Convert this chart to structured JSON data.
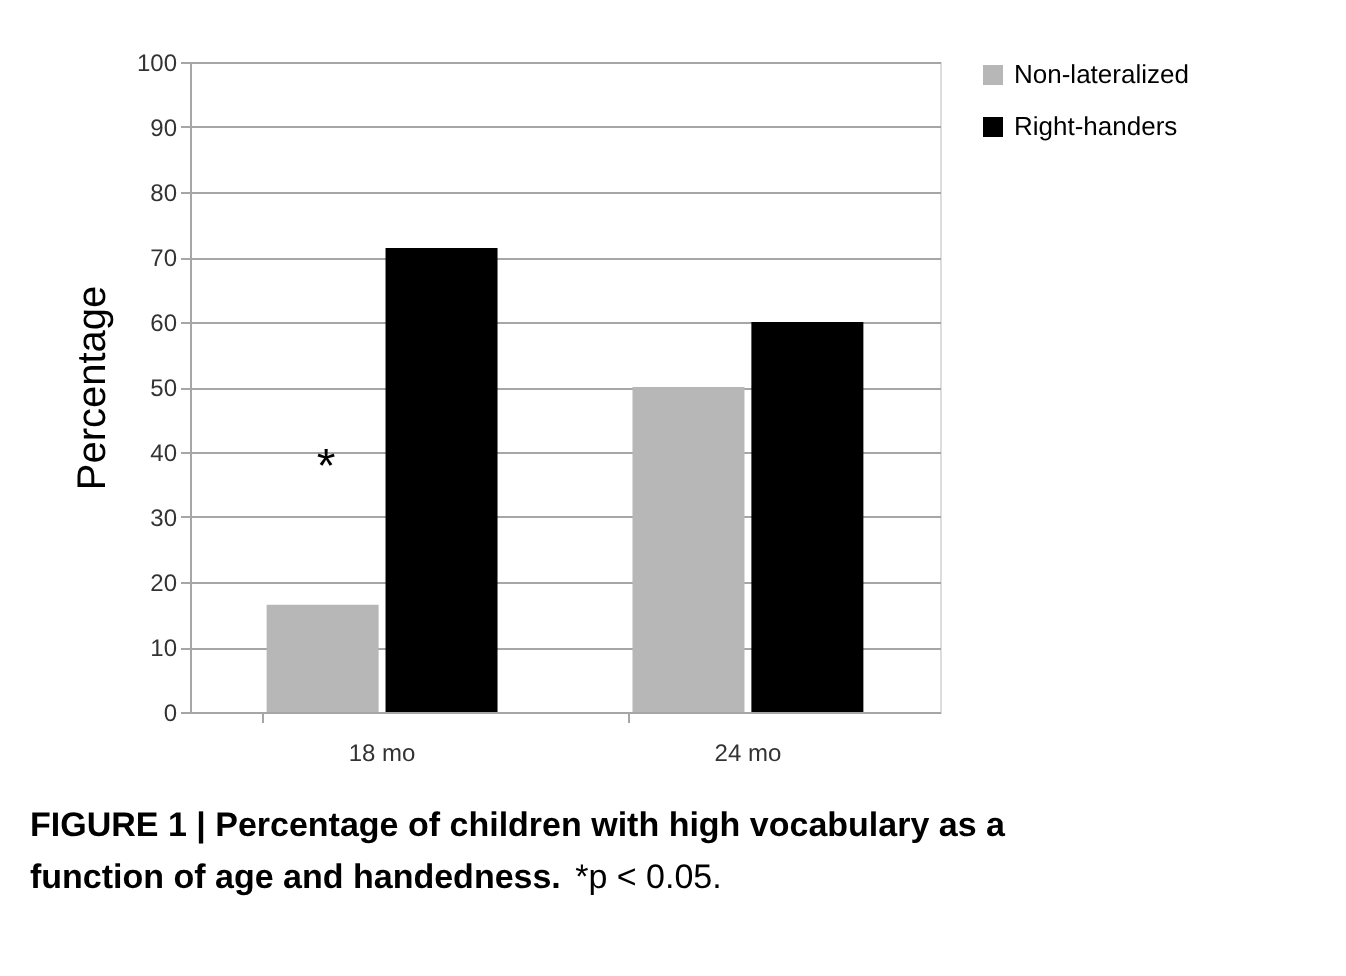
{
  "chart_data": {
    "type": "bar",
    "ylabel": "Percentage",
    "categories": [
      "18 mo",
      "24 mo"
    ],
    "series": [
      {
        "name": "Non-lateralized",
        "color": "#b7b7b7",
        "values": [
          16.5,
          50
        ]
      },
      {
        "name": "Right-handers",
        "color": "#000000",
        "values": [
          71.4,
          60
        ]
      }
    ],
    "ylim": [
      0,
      100
    ],
    "yticks": [
      0,
      10,
      20,
      30,
      40,
      50,
      60,
      70,
      80,
      90,
      100
    ],
    "grid": "y",
    "legend": "right",
    "annotations": [
      {
        "text": "*",
        "x": "18 mo",
        "y": 40
      },
      "FIGURE 1 | Percentage of children with high vocabulary as a function of age and handedness.",
      "*p < 0.05."
    ]
  }
}
